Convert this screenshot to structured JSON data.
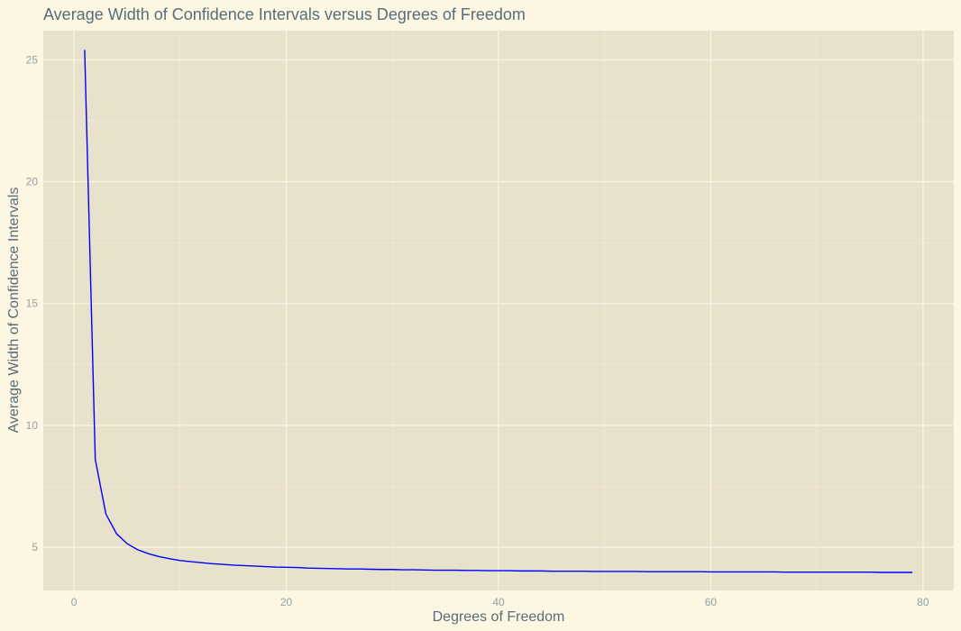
{
  "chart_data": {
    "type": "line",
    "title": "Average Width of Confidence Intervals versus Degrees of Freedom",
    "xlabel": "Degrees of Freedom",
    "ylabel": "Average Width of Confidence Intervals",
    "xlim": [
      -2.9,
      82.9
    ],
    "ylim": [
      3.22,
      26.2
    ],
    "x_ticks": [
      0,
      20,
      40,
      60,
      80
    ],
    "y_ticks": [
      5,
      10,
      15,
      20,
      25
    ],
    "x_minor_ticks": [
      10,
      30,
      50,
      70
    ],
    "y_minor_ticks": [
      7.5,
      12.5,
      17.5,
      22.5
    ],
    "grid": true,
    "colors": {
      "background": "#fdf6e3",
      "panel": "#e8e1cc",
      "line": "#0000ff"
    },
    "series": [
      {
        "color": "#0000ff",
        "x": [
          1,
          2,
          3,
          4,
          5,
          6,
          7,
          8,
          9,
          10,
          11,
          12,
          13,
          14,
          15,
          16,
          17,
          18,
          19,
          20,
          21,
          22,
          23,
          24,
          25,
          26,
          27,
          28,
          29,
          30,
          31,
          32,
          33,
          34,
          35,
          36,
          37,
          38,
          39,
          40,
          41,
          42,
          43,
          44,
          45,
          46,
          47,
          48,
          49,
          50,
          51,
          52,
          53,
          54,
          55,
          56,
          57,
          58,
          59,
          60,
          61,
          62,
          63,
          64,
          65,
          66,
          67,
          68,
          69,
          70,
          71,
          72,
          73,
          74,
          75,
          76,
          77,
          78,
          79
        ],
        "values": [
          25.41,
          8.6,
          6.36,
          5.55,
          5.14,
          4.89,
          4.73,
          4.61,
          4.52,
          4.45,
          4.4,
          4.36,
          4.32,
          4.29,
          4.26,
          4.24,
          4.22,
          4.2,
          4.18,
          4.17,
          4.16,
          4.14,
          4.13,
          4.12,
          4.11,
          4.1,
          4.1,
          4.09,
          4.08,
          4.08,
          4.07,
          4.07,
          4.06,
          4.05,
          4.05,
          4.05,
          4.04,
          4.04,
          4.03,
          4.03,
          4.03,
          4.02,
          4.02,
          4.02,
          4.01,
          4.01,
          4.01,
          4.01,
          4.0,
          4.0,
          4.0,
          4.0,
          4.0,
          3.99,
          3.99,
          3.99,
          3.99,
          3.99,
          3.99,
          3.98,
          3.98,
          3.98,
          3.98,
          3.98,
          3.98,
          3.98,
          3.97,
          3.97,
          3.97,
          3.97,
          3.97,
          3.97,
          3.97,
          3.97,
          3.97,
          3.96,
          3.96,
          3.96,
          3.96
        ]
      }
    ]
  }
}
